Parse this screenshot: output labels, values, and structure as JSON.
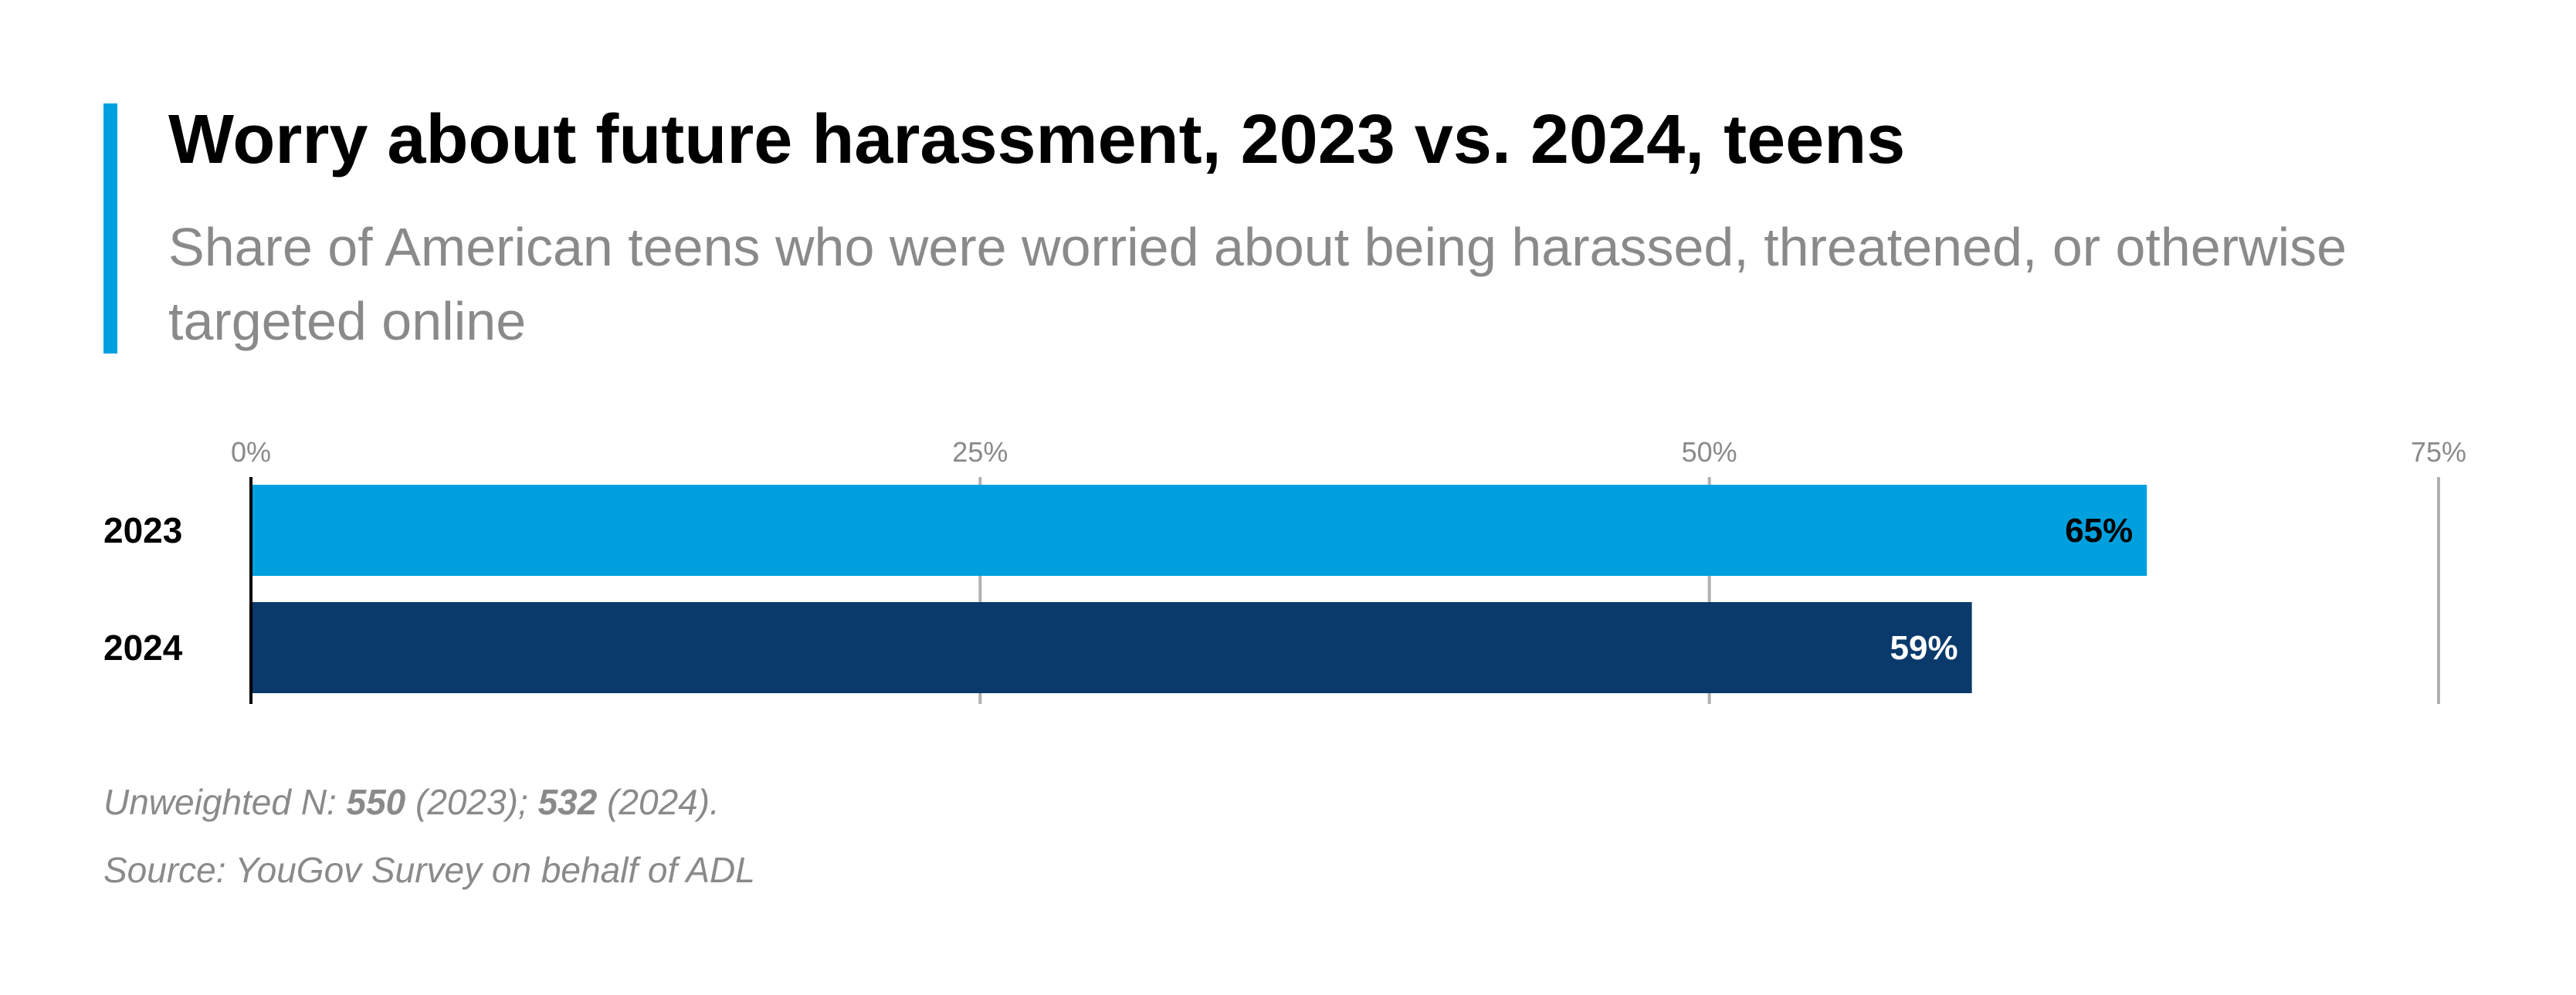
{
  "header": {
    "title": "Worry about future harassment, 2023 vs. 2024, teens",
    "subtitle": "Share of American teens who were worried about being harassed, threatened, or otherwise targeted online"
  },
  "colors": {
    "accent": "#00a0df",
    "series_2023": "#00a0df",
    "series_2024": "#0a3a6b",
    "grid": "#b0b0b0",
    "tick_text": "#8a8a8a"
  },
  "chart_data": {
    "type": "bar",
    "orientation": "horizontal",
    "categories": [
      "2023",
      "2024"
    ],
    "values": [
      65,
      59
    ],
    "value_labels": [
      "65%",
      "59%"
    ],
    "xlim": [
      0,
      75
    ],
    "ticks": [
      0,
      25,
      50,
      75
    ],
    "tick_labels": [
      "0%",
      "25%",
      "50%",
      "75%"
    ],
    "grid": true
  },
  "footer": {
    "n_prefix": "Unweighted N: ",
    "n_2023": "550",
    "n_2023_suffix": " (2023); ",
    "n_2024": "532",
    "n_2024_suffix": " (2024).",
    "source": "Source: YouGov Survey on behalf of ADL"
  }
}
